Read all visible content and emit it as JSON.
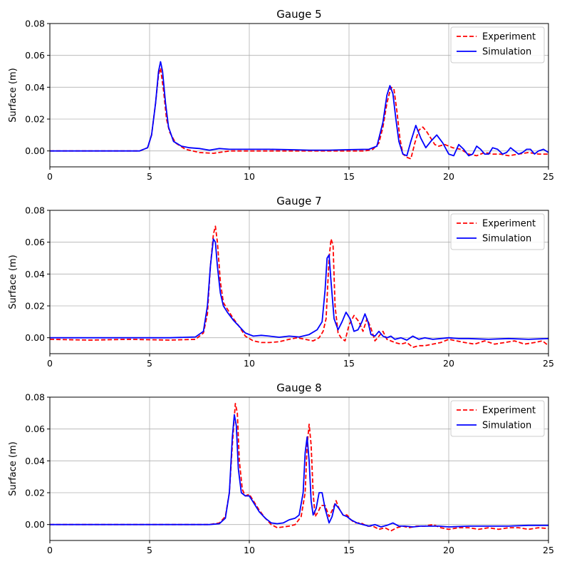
{
  "figure": {
    "background": "#ffffff"
  },
  "chart_data": [
    {
      "type": "line",
      "title": "Gauge 5",
      "xlabel": "",
      "ylabel": "Surface (m)",
      "xlim": [
        0,
        25
      ],
      "ylim": [
        -0.01,
        0.08
      ],
      "xticks": [
        "0",
        "5",
        "10",
        "15",
        "20",
        "25"
      ],
      "yticks": [
        "0.00",
        "0.02",
        "0.04",
        "0.06",
        "0.08"
      ],
      "grid": true,
      "legend": "top-right",
      "series": [
        {
          "name": "Experiment",
          "color": "#ff0000",
          "style": "dashed",
          "x": [
            0,
            4.5,
            4.9,
            5.1,
            5.3,
            5.45,
            5.55,
            5.7,
            5.85,
            6.0,
            6.3,
            6.8,
            7.5,
            8.2,
            9.0,
            10,
            12,
            14,
            15.8,
            16.2,
            16.5,
            16.7,
            16.9,
            17.1,
            17.25,
            17.4,
            17.55,
            17.7,
            17.9,
            18.1,
            18.3,
            18.5,
            18.7,
            18.9,
            19.1,
            19.3,
            19.5,
            19.8,
            20.2,
            20.6,
            21.0,
            21.4,
            21.8,
            22.2,
            22.6,
            23.0,
            23.5,
            24.0,
            24.5,
            25
          ],
          "y": [
            0,
            0,
            0.002,
            0.01,
            0.03,
            0.048,
            0.052,
            0.038,
            0.02,
            0.012,
            0.005,
            0.001,
            -0.001,
            -0.0015,
            0,
            0,
            0,
            0,
            0,
            0.001,
            0.005,
            0.015,
            0.03,
            0.04,
            0.039,
            0.025,
            0.008,
            -0.002,
            -0.004,
            -0.005,
            0.005,
            0.013,
            0.015,
            0.012,
            0.008,
            0.004,
            0.003,
            0.004,
            0.002,
            0.001,
            -0.002,
            -0.003,
            -0.001,
            -0.002,
            -0.002,
            -0.003,
            -0.002,
            -0.001,
            -0.002,
            -0.002
          ]
        },
        {
          "name": "Simulation",
          "color": "#0000ff",
          "style": "solid",
          "x": [
            0,
            4.5,
            4.9,
            5.1,
            5.3,
            5.45,
            5.55,
            5.65,
            5.8,
            5.95,
            6.2,
            6.6,
            7.0,
            7.5,
            8.0,
            8.5,
            9.0,
            10,
            11,
            12,
            13,
            14,
            15,
            16,
            16.4,
            16.7,
            16.9,
            17.05,
            17.2,
            17.35,
            17.5,
            17.7,
            17.9,
            18.1,
            18.35,
            18.6,
            18.85,
            19.1,
            19.4,
            19.7,
            20.0,
            20.25,
            20.5,
            20.75,
            21.0,
            21.2,
            21.4,
            21.6,
            21.8,
            22.0,
            22.2,
            22.45,
            22.7,
            22.9,
            23.1,
            23.3,
            23.5,
            23.7,
            23.9,
            24.1,
            24.3,
            24.5,
            24.75,
            25
          ],
          "y": [
            0,
            0,
            0.002,
            0.01,
            0.03,
            0.05,
            0.056,
            0.05,
            0.03,
            0.015,
            0.006,
            0.003,
            0.002,
            0.0015,
            0.0005,
            0.0015,
            0.001,
            0.001,
            0.001,
            0.0008,
            0.0005,
            0.0005,
            0.0008,
            0.001,
            0.003,
            0.018,
            0.035,
            0.041,
            0.036,
            0.02,
            0.006,
            -0.002,
            -0.003,
            0.006,
            0.016,
            0.008,
            0.002,
            0.006,
            0.01,
            0.005,
            -0.002,
            -0.003,
            0.004,
            0.001,
            -0.003,
            -0.002,
            0.003,
            0.001,
            -0.002,
            -0.002,
            0.002,
            0.001,
            -0.002,
            -0.001,
            0.002,
            0.0,
            -0.002,
            -0.001,
            0.001,
            0.001,
            -0.002,
            0.0,
            0.001,
            -0.001
          ]
        }
      ]
    },
    {
      "type": "line",
      "title": "Gauge 7",
      "xlabel": "",
      "ylabel": "Surface (m)",
      "xlim": [
        0,
        25
      ],
      "ylim": [
        -0.01,
        0.08
      ],
      "xticks": [
        "0",
        "5",
        "10",
        "15",
        "20",
        "25"
      ],
      "yticks": [
        "0.00",
        "0.02",
        "0.04",
        "0.06",
        "0.08"
      ],
      "grid": true,
      "legend": "top-right",
      "series": [
        {
          "name": "Experiment",
          "color": "#ff0000",
          "style": "dashed",
          "x": [
            0,
            2,
            4,
            6,
            7.3,
            7.7,
            7.9,
            8.05,
            8.2,
            8.3,
            8.4,
            8.55,
            8.7,
            8.9,
            9.2,
            9.5,
            9.8,
            10.2,
            10.6,
            11.0,
            11.5,
            12.0,
            12.4,
            12.8,
            13.2,
            13.5,
            13.7,
            13.85,
            14.0,
            14.1,
            14.2,
            14.3,
            14.45,
            14.6,
            14.8,
            15.0,
            15.25,
            15.5,
            15.7,
            15.9,
            16.1,
            16.3,
            16.5,
            16.7,
            16.9,
            17.1,
            17.3,
            17.6,
            17.9,
            18.2,
            18.5,
            18.8,
            19.2,
            19.6,
            20.0,
            20.4,
            20.8,
            21.3,
            21.8,
            22.3,
            22.8,
            23.3,
            23.8,
            24.3,
            24.7,
            25
          ],
          "y": [
            -0.001,
            -0.0015,
            -0.001,
            -0.0015,
            -0.001,
            0.003,
            0.015,
            0.045,
            0.065,
            0.07,
            0.06,
            0.035,
            0.022,
            0.018,
            0.012,
            0.007,
            0.001,
            -0.002,
            -0.003,
            -0.003,
            -0.0025,
            -0.001,
            0.0,
            -0.001,
            -0.002,
            0.0,
            0.004,
            0.012,
            0.05,
            0.062,
            0.058,
            0.02,
            0.003,
            0.0,
            -0.002,
            0.008,
            0.014,
            0.01,
            0.004,
            0.012,
            0.006,
            -0.002,
            0.001,
            0.004,
            -0.001,
            -0.002,
            -0.003,
            -0.004,
            -0.003,
            -0.006,
            -0.005,
            -0.005,
            -0.004,
            -0.003,
            -0.001,
            -0.002,
            -0.003,
            -0.004,
            -0.002,
            -0.004,
            -0.003,
            -0.002,
            -0.004,
            -0.003,
            -0.002,
            -0.005
          ]
        },
        {
          "name": "Simulation",
          "color": "#0000ff",
          "style": "solid",
          "x": [
            0,
            2,
            4,
            6,
            7.3,
            7.7,
            7.9,
            8.05,
            8.2,
            8.3,
            8.4,
            8.55,
            8.7,
            8.9,
            9.2,
            9.5,
            9.8,
            10.2,
            10.6,
            11.0,
            11.5,
            12.0,
            12.5,
            13.0,
            13.4,
            13.65,
            13.8,
            13.9,
            14.0,
            14.1,
            14.25,
            14.45,
            14.65,
            14.85,
            15.05,
            15.25,
            15.45,
            15.65,
            15.8,
            15.95,
            16.1,
            16.3,
            16.5,
            16.7,
            16.9,
            17.1,
            17.3,
            17.6,
            17.9,
            18.2,
            18.5,
            18.8,
            19.2,
            19.6,
            20.0,
            20.5,
            21.0,
            22,
            23,
            24,
            25
          ],
          "y": [
            0,
            0,
            0,
            0,
            0.0005,
            0.004,
            0.02,
            0.045,
            0.062,
            0.06,
            0.045,
            0.028,
            0.02,
            0.016,
            0.011,
            0.007,
            0.003,
            0.001,
            0.0015,
            0.001,
            0.0003,
            0.001,
            0.0005,
            0.002,
            0.005,
            0.01,
            0.03,
            0.05,
            0.052,
            0.035,
            0.012,
            0.005,
            0.01,
            0.016,
            0.012,
            0.004,
            0.005,
            0.01,
            0.015,
            0.01,
            0.002,
            0.001,
            0.004,
            0.001,
            0.0,
            0.001,
            -0.001,
            0.0,
            -0.0015,
            0.001,
            -0.001,
            0.0,
            -0.001,
            -0.0005,
            0.0,
            -0.0005,
            -0.0005,
            -0.001,
            -0.0005,
            -0.001,
            -0.0005
          ]
        }
      ]
    },
    {
      "type": "line",
      "title": "Gauge 8",
      "xlabel": "",
      "ylabel": "Surface (m)",
      "xlim": [
        0,
        25
      ],
      "ylim": [
        -0.01,
        0.08
      ],
      "xticks": [
        "0",
        "5",
        "10",
        "15",
        "20",
        "25"
      ],
      "yticks": [
        "0.00",
        "0.02",
        "0.04",
        "0.06",
        "0.08"
      ],
      "grid": true,
      "legend": "top-right",
      "series": [
        {
          "name": "Experiment",
          "color": "#ff0000",
          "style": "dashed",
          "x": [
            0,
            2,
            4,
            6,
            8,
            8.5,
            8.8,
            9.0,
            9.15,
            9.3,
            9.4,
            9.5,
            9.65,
            9.8,
            10.0,
            10.2,
            10.5,
            10.8,
            11.1,
            11.4,
            11.7,
            12.0,
            12.3,
            12.6,
            12.8,
            12.9,
            13.0,
            13.1,
            13.2,
            13.3,
            13.45,
            13.6,
            13.8,
            14.0,
            14.2,
            14.35,
            14.5,
            14.7,
            14.9,
            15.1,
            15.3,
            15.6,
            15.9,
            16.2,
            16.5,
            16.8,
            17.1,
            17.4,
            17.7,
            18.0,
            18.4,
            18.8,
            19.2,
            19.6,
            20.0,
            20.5,
            21.0,
            21.5,
            22.0,
            22.5,
            23.0,
            23.5,
            24.0,
            24.5,
            25
          ],
          "y": [
            0,
            0,
            0,
            0,
            0,
            0.001,
            0.005,
            0.02,
            0.05,
            0.076,
            0.07,
            0.04,
            0.022,
            0.018,
            0.019,
            0.015,
            0.009,
            0.004,
            0.0,
            -0.002,
            -0.0015,
            -0.001,
            0.0,
            0.005,
            0.02,
            0.05,
            0.063,
            0.05,
            0.02,
            0.005,
            0.008,
            0.012,
            0.012,
            0.005,
            0.01,
            0.015,
            0.01,
            0.006,
            0.006,
            0.003,
            0.001,
            0.001,
            -0.001,
            -0.001,
            -0.003,
            -0.002,
            -0.004,
            -0.002,
            -0.001,
            -0.002,
            -0.001,
            -0.001,
            0.0,
            -0.002,
            -0.003,
            -0.002,
            -0.002,
            -0.003,
            -0.002,
            -0.003,
            -0.002,
            -0.002,
            -0.003,
            -0.002,
            -0.0025
          ]
        },
        {
          "name": "Simulation",
          "color": "#0000ff",
          "style": "solid",
          "x": [
            0,
            2,
            4,
            6,
            8,
            8.5,
            8.8,
            9.0,
            9.15,
            9.25,
            9.35,
            9.45,
            9.6,
            9.8,
            10.0,
            10.2,
            10.5,
            10.8,
            11.1,
            11.4,
            11.7,
            12.0,
            12.3,
            12.5,
            12.7,
            12.8,
            12.9,
            13.0,
            13.1,
            13.2,
            13.35,
            13.5,
            13.65,
            13.8,
            14.0,
            14.15,
            14.3,
            14.5,
            14.7,
            14.9,
            15.1,
            15.4,
            15.7,
            16.0,
            16.3,
            16.6,
            16.9,
            17.2,
            17.5,
            17.8,
            18.2,
            18.6,
            19.0,
            19.5,
            20.0,
            21.0,
            22.0,
            23.0,
            24.0,
            25
          ],
          "y": [
            0,
            0,
            0,
            0,
            0,
            0.0005,
            0.004,
            0.02,
            0.055,
            0.069,
            0.062,
            0.035,
            0.02,
            0.018,
            0.018,
            0.014,
            0.008,
            0.004,
            0.001,
            0.0005,
            0.001,
            0.003,
            0.004,
            0.006,
            0.02,
            0.045,
            0.055,
            0.04,
            0.015,
            0.006,
            0.01,
            0.02,
            0.02,
            0.01,
            0.001,
            0.005,
            0.013,
            0.01,
            0.006,
            0.005,
            0.003,
            0.001,
            0.0,
            -0.001,
            0.0,
            -0.0015,
            -0.0005,
            0.001,
            -0.001,
            -0.001,
            -0.0015,
            -0.001,
            -0.001,
            -0.001,
            -0.0015,
            -0.001,
            -0.001,
            -0.001,
            -0.0005,
            -0.0005
          ]
        }
      ]
    }
  ]
}
